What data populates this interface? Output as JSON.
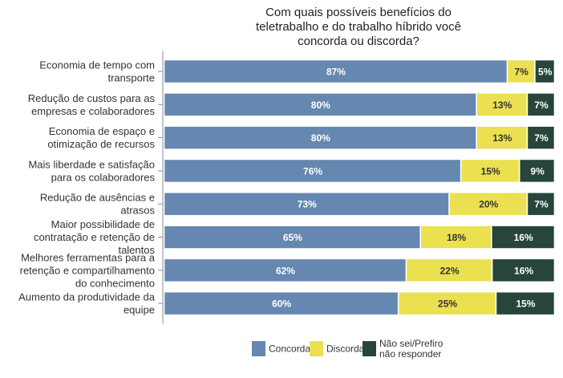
{
  "chart_data": {
    "type": "bar",
    "orientation": "horizontal",
    "stacked": true,
    "normalized": true,
    "title_lines": [
      "Com quais possíveis benefícios do",
      "teletrabalho e do trabalho híbrido você",
      "concorda ou discorda?"
    ],
    "title": "Com quais possíveis benefícios do teletrabalho e do trabalho híbrido você concorda ou discorda?",
    "xlabel": "",
    "ylabel": "",
    "grid": false,
    "legend_position": "bottom",
    "categories": [
      {
        "label": "Economia de tempo com transporte",
        "lines": [
          "Economia de tempo com",
          "transporte"
        ]
      },
      {
        "label": "Redução de custos para as empresas e colaboradores",
        "lines": [
          "Redução de custos para as",
          "empresas e colaboradores"
        ]
      },
      {
        "label": "Economia de espaço e otimização de recursos",
        "lines": [
          "Economia de espaço e",
          "otimização de recursos"
        ]
      },
      {
        "label": "Mais liberdade e satisfação para os colaboradores",
        "lines": [
          "Mais liberdade e satisfação",
          "para os colaboradores"
        ]
      },
      {
        "label": "Redução de ausências e atrasos",
        "lines": [
          "Redução de ausências e",
          "atrasos"
        ]
      },
      {
        "label": "Maior possibilidade de contratação e retenção de talentos",
        "lines": [
          "Maior possibilidade de",
          "contratação e retenção de",
          "talentos"
        ]
      },
      {
        "label": "Melhores ferramentas para a retenção e compartilhamento do conhecimento",
        "lines": [
          "Melhores ferramentas para a",
          "retenção e compartilhamento",
          "do conhecimento"
        ]
      },
      {
        "label": "Aumento da produtividade da equipe",
        "lines": [
          "Aumento da produtividade da",
          "equipe"
        ]
      }
    ],
    "series": [
      {
        "name": "Concorda",
        "legend_lines": [
          "Concorda"
        ],
        "color": "#6587b0",
        "text_color": "#ffffff",
        "values": [
          87,
          80,
          80,
          76,
          73,
          65,
          62,
          60
        ]
      },
      {
        "name": "Discorda",
        "legend_lines": [
          "Discorda"
        ],
        "color": "#ebe050",
        "text_color": "#333333",
        "values": [
          7,
          13,
          13,
          15,
          20,
          18,
          22,
          25
        ]
      },
      {
        "name": "Não sei/Prefiro não responder",
        "legend_lines": [
          "Não sei/Prefiro",
          "não responder"
        ],
        "color": "#27453a",
        "text_color": "#ffffff",
        "values": [
          5,
          7,
          7,
          9,
          7,
          16,
          16,
          15
        ]
      }
    ],
    "value_suffix": "%",
    "xlim": [
      0,
      100
    ]
  }
}
